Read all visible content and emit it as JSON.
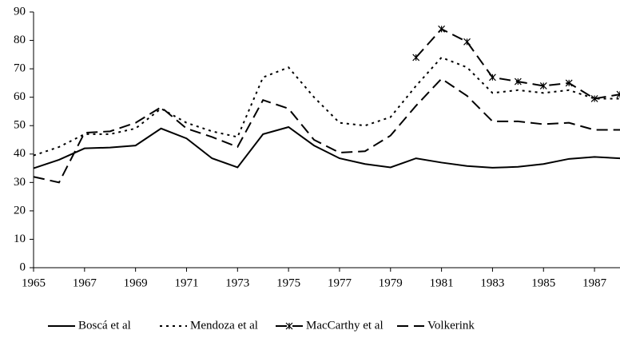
{
  "chart_data": {
    "type": "line",
    "x": [
      1965,
      1966,
      1967,
      1968,
      1969,
      1970,
      1971,
      1972,
      1973,
      1974,
      1975,
      1976,
      1977,
      1978,
      1979,
      1980,
      1981,
      1982,
      1983,
      1984,
      1985,
      1986,
      1987,
      1988
    ],
    "series": [
      {
        "name": "Boscá et al",
        "color": "#000000",
        "dash": "solid",
        "values": [
          35,
          38,
          42,
          42.3,
          43,
          49,
          45.5,
          38.5,
          35.3,
          47,
          49.5,
          43,
          38.5,
          36.5,
          35.3,
          38.5,
          37,
          35.8,
          35.2,
          35.5,
          36.5,
          38.3,
          39,
          38.5
        ]
      },
      {
        "name": "Mendoza et al",
        "color": "#000000",
        "dash": "dotted",
        "values": [
          39.5,
          42.5,
          47,
          47,
          49,
          56,
          51,
          48,
          46,
          67,
          70.5,
          60,
          51,
          50,
          53,
          64,
          74,
          70.5,
          61.5,
          62.5,
          61.5,
          62.5,
          59.5,
          59.5
        ]
      },
      {
        "name": "MacCarthy et al",
        "color": "#000000",
        "dash": "dashed",
        "marker": "asterisk",
        "values": [
          null,
          null,
          null,
          null,
          null,
          null,
          null,
          null,
          null,
          null,
          null,
          null,
          null,
          null,
          null,
          74,
          84,
          79.5,
          67,
          65.5,
          64,
          65,
          59.5,
          61
        ]
      },
      {
        "name": "Volkerink",
        "color": "#000000",
        "dash": "dashed",
        "values": [
          32,
          30,
          47.5,
          48,
          51,
          56.5,
          49,
          46,
          42.5,
          59,
          56,
          45,
          40.5,
          41,
          46.5,
          57,
          66.5,
          60.5,
          51.5,
          51.5,
          50.5,
          51,
          48.5,
          48.5
        ]
      }
    ],
    "xlim": [
      1965,
      1988
    ],
    "xticks": [
      1965,
      1967,
      1969,
      1971,
      1973,
      1975,
      1977,
      1979,
      1981,
      1983,
      1985,
      1987
    ],
    "ylim": [
      0,
      90
    ],
    "yticks": [
      0,
      10,
      20,
      30,
      40,
      50,
      60,
      70,
      80,
      90
    ],
    "grid": false,
    "legend": "bottom"
  }
}
